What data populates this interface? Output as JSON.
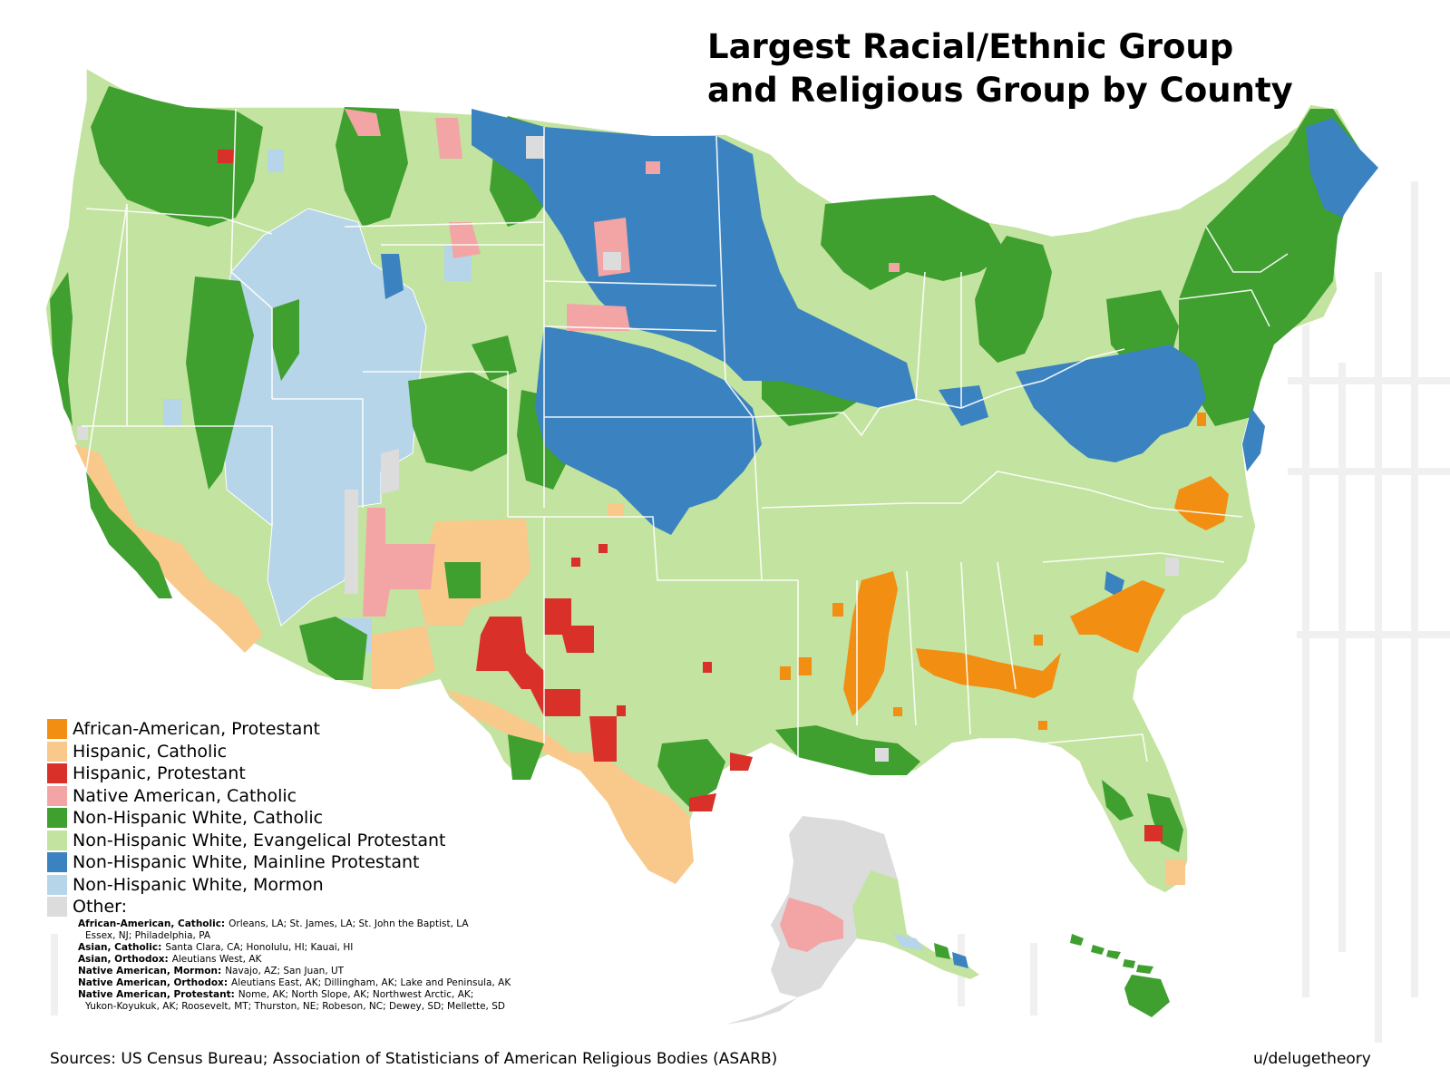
{
  "title": {
    "line1": "Largest Racial/Ethnic Group",
    "line2": "and Religious Group by County"
  },
  "colors": {
    "african_american_protestant": "#f28e12",
    "hispanic_catholic": "#f8c98a",
    "hispanic_protestant": "#d93029",
    "native_american_catholic": "#f3a5a5",
    "nhw_catholic": "#3f9f2f",
    "nhw_evangelical_protestant": "#c3e3a0",
    "nhw_mainline_protestant": "#3b82c0",
    "nhw_mormon": "#b6d5e8",
    "other": "#dcdcdc",
    "boundary": "#ffffff"
  },
  "legend": [
    {
      "label": "African-American, Protestant",
      "color": "#f28e12"
    },
    {
      "label": "Hispanic, Catholic",
      "color": "#f8c98a"
    },
    {
      "label": "Hispanic, Protestant",
      "color": "#d93029"
    },
    {
      "label": "Native American, Catholic",
      "color": "#f3a5a5"
    },
    {
      "label": "Non-Hispanic White, Catholic",
      "color": "#3f9f2f"
    },
    {
      "label": "Non-Hispanic White, Evangelical Protestant",
      "color": "#c3e3a0"
    },
    {
      "label": "Non-Hispanic White, Mainline Protestant",
      "color": "#3b82c0"
    },
    {
      "label": "Non-Hispanic White, Mormon",
      "color": "#b6d5e8"
    },
    {
      "label": "Other:",
      "color": "#dcdcdc"
    }
  ],
  "other_notes": [
    {
      "group": "African-American, Catholic:",
      "counties": "Orleans, LA; St. James, LA; St. John the Baptist, LA",
      "cont": "Essex, NJ; Philadelphia, PA"
    },
    {
      "group": "Asian, Catholic:",
      "counties": "Santa Clara, CA; Honolulu, HI; Kauai, HI"
    },
    {
      "group": "Asian, Orthodox:",
      "counties": "Aleutians West, AK"
    },
    {
      "group": "Native American, Mormon:",
      "counties": "Navajo, AZ; San Juan, UT"
    },
    {
      "group": "Native American, Orthodox:",
      "counties": "Aleutians East, AK; Dillingham, AK; Lake and Peninsula, AK"
    },
    {
      "group": "Native American, Protestant:",
      "counties": "Nome, AK; North Slope, AK; Northwest Arctic, AK;",
      "cont": "Yukon-Koyukuk, AK; Roosevelt, MT; Thurston, NE; Robeson, NC; Dewey, SD; Mellette, SD"
    }
  ],
  "sources": "Sources:  US Census Bureau; Association of Statisticians of American Religious Bodies (ASARB)",
  "credit": "u/delugetheory"
}
